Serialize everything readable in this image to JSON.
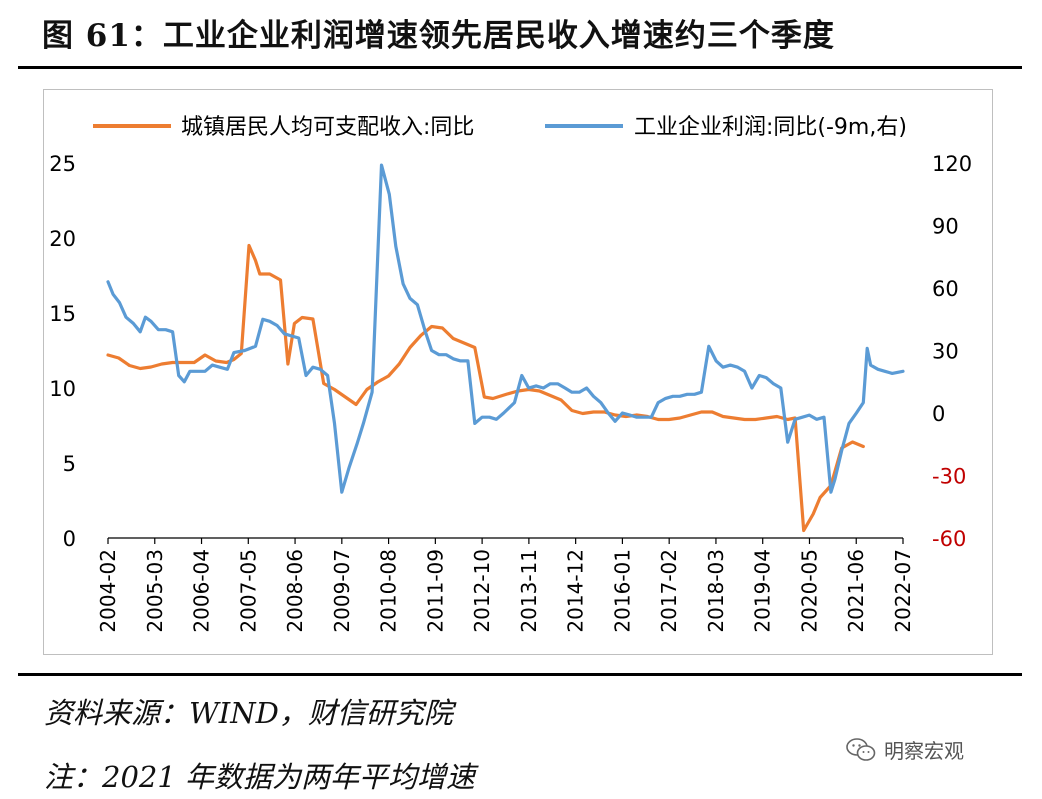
{
  "figure": {
    "title": "图 61：工业企业利润增速领先居民收入增速约三个季度",
    "source": "资料来源：WIND，财信研究院",
    "note": "注：2021 年数据为两年平均增速",
    "watermark": "明察宏观",
    "watermark_icon": "wechat-icon"
  },
  "chart_data": {
    "type": "line",
    "title": "",
    "xlabel": "",
    "ylabel_left": "",
    "ylabel_right": "",
    "legend_placement": "top",
    "grid": false,
    "x_ticks": [
      "2004-02",
      "2005-03",
      "2006-04",
      "2007-05",
      "2008-06",
      "2009-07",
      "2010-08",
      "2011-09",
      "2012-10",
      "2013-11",
      "2014-12",
      "2016-01",
      "2017-02",
      "2018-03",
      "2019-04",
      "2020-05",
      "2021-06",
      "2022-07"
    ],
    "x_range": [
      2004.083,
      2022.5
    ],
    "y_left": {
      "range": [
        0,
        25
      ],
      "ticks": [
        0,
        5,
        10,
        15,
        20,
        25
      ],
      "tick_color": "#000000"
    },
    "y_right": {
      "range": [
        -60,
        120
      ],
      "ticks": [
        -60,
        -30,
        0,
        30,
        60,
        90,
        120
      ],
      "tick_color_positive": "#000000",
      "tick_color_negative": "#c00000"
    },
    "series": [
      {
        "name": "城镇居民人均可支配收入:同比",
        "axis": "left",
        "color": "#ed7d31",
        "points": [
          [
            2004.083,
            12.2
          ],
          [
            2004.33,
            12.0
          ],
          [
            2004.58,
            11.5
          ],
          [
            2004.83,
            11.3
          ],
          [
            2005.08,
            11.4
          ],
          [
            2005.33,
            11.6
          ],
          [
            2005.58,
            11.7
          ],
          [
            2005.83,
            11.7
          ],
          [
            2006.08,
            11.7
          ],
          [
            2006.33,
            12.2
          ],
          [
            2006.58,
            11.8
          ],
          [
            2006.83,
            11.7
          ],
          [
            2007.0,
            11.9
          ],
          [
            2007.17,
            12.3
          ],
          [
            2007.35,
            19.5
          ],
          [
            2007.5,
            18.5
          ],
          [
            2007.6,
            17.6
          ],
          [
            2007.83,
            17.6
          ],
          [
            2008.08,
            17.2
          ],
          [
            2008.25,
            11.6
          ],
          [
            2008.4,
            14.3
          ],
          [
            2008.58,
            14.7
          ],
          [
            2008.83,
            14.6
          ],
          [
            2009.08,
            10.3
          ],
          [
            2009.33,
            9.9
          ],
          [
            2009.58,
            9.4
          ],
          [
            2009.83,
            8.9
          ],
          [
            2010.08,
            9.9
          ],
          [
            2010.33,
            10.4
          ],
          [
            2010.58,
            10.8
          ],
          [
            2010.83,
            11.6
          ],
          [
            2011.08,
            12.7
          ],
          [
            2011.33,
            13.5
          ],
          [
            2011.58,
            14.1
          ],
          [
            2011.83,
            14.0
          ],
          [
            2012.08,
            13.3
          ],
          [
            2012.33,
            13.0
          ],
          [
            2012.58,
            12.7
          ],
          [
            2012.8,
            9.4
          ],
          [
            2013.0,
            9.3
          ],
          [
            2013.33,
            9.6
          ],
          [
            2013.58,
            9.8
          ],
          [
            2013.83,
            9.9
          ],
          [
            2014.08,
            9.8
          ],
          [
            2014.33,
            9.5
          ],
          [
            2014.58,
            9.2
          ],
          [
            2014.83,
            8.5
          ],
          [
            2015.08,
            8.3
          ],
          [
            2015.33,
            8.4
          ],
          [
            2015.58,
            8.4
          ],
          [
            2015.83,
            8.2
          ],
          [
            2016.08,
            8.1
          ],
          [
            2016.33,
            8.2
          ],
          [
            2016.58,
            8.1
          ],
          [
            2016.83,
            7.9
          ],
          [
            2017.08,
            7.9
          ],
          [
            2017.33,
            8.0
          ],
          [
            2017.58,
            8.2
          ],
          [
            2017.83,
            8.4
          ],
          [
            2018.08,
            8.4
          ],
          [
            2018.33,
            8.1
          ],
          [
            2018.58,
            8.0
          ],
          [
            2018.83,
            7.9
          ],
          [
            2019.08,
            7.9
          ],
          [
            2019.33,
            8.0
          ],
          [
            2019.58,
            8.1
          ],
          [
            2019.83,
            7.9
          ],
          [
            2020.0,
            8.0
          ],
          [
            2020.2,
            0.5
          ],
          [
            2020.42,
            1.6
          ],
          [
            2020.58,
            2.7
          ],
          [
            2020.83,
            3.5
          ],
          [
            2021.08,
            6.0
          ],
          [
            2021.33,
            6.4
          ],
          [
            2021.58,
            6.1
          ]
        ]
      },
      {
        "name": "工业企业利润:同比(-9m,右)",
        "axis": "right",
        "color": "#5b9bd5",
        "points": [
          [
            2004.083,
            63
          ],
          [
            2004.2,
            57
          ],
          [
            2004.35,
            53
          ],
          [
            2004.5,
            46
          ],
          [
            2004.67,
            43
          ],
          [
            2004.83,
            39
          ],
          [
            2004.95,
            46
          ],
          [
            2005.08,
            44
          ],
          [
            2005.25,
            40
          ],
          [
            2005.42,
            40
          ],
          [
            2005.58,
            39
          ],
          [
            2005.72,
            18
          ],
          [
            2005.85,
            15
          ],
          [
            2005.98,
            20
          ],
          [
            2006.15,
            20
          ],
          [
            2006.33,
            20
          ],
          [
            2006.5,
            23
          ],
          [
            2006.67,
            22
          ],
          [
            2006.85,
            21
          ],
          [
            2007.0,
            29
          ],
          [
            2007.25,
            30
          ],
          [
            2007.5,
            32
          ],
          [
            2007.67,
            45
          ],
          [
            2007.83,
            44
          ],
          [
            2008.0,
            42
          ],
          [
            2008.17,
            38
          ],
          [
            2008.33,
            37
          ],
          [
            2008.5,
            36
          ],
          [
            2008.67,
            18
          ],
          [
            2008.83,
            22
          ],
          [
            2009.0,
            21
          ],
          [
            2009.17,
            18
          ],
          [
            2009.33,
            -5
          ],
          [
            2009.5,
            -38
          ],
          [
            2009.67,
            -26
          ],
          [
            2009.85,
            -15
          ],
          [
            2010.0,
            -5
          ],
          [
            2010.2,
            10
          ],
          [
            2010.42,
            119
          ],
          [
            2010.6,
            105
          ],
          [
            2010.75,
            80
          ],
          [
            2010.92,
            62
          ],
          [
            2011.08,
            55
          ],
          [
            2011.25,
            52
          ],
          [
            2011.42,
            40
          ],
          [
            2011.58,
            30
          ],
          [
            2011.75,
            28
          ],
          [
            2011.92,
            28
          ],
          [
            2012.08,
            26
          ],
          [
            2012.25,
            25
          ],
          [
            2012.42,
            25
          ],
          [
            2012.58,
            -5
          ],
          [
            2012.75,
            -2
          ],
          [
            2012.92,
            -2
          ],
          [
            2013.08,
            -3
          ],
          [
            2013.25,
            0
          ],
          [
            2013.5,
            5
          ],
          [
            2013.67,
            18
          ],
          [
            2013.83,
            12
          ],
          [
            2014.0,
            13
          ],
          [
            2014.17,
            12
          ],
          [
            2014.33,
            14
          ],
          [
            2014.5,
            14
          ],
          [
            2014.67,
            12
          ],
          [
            2014.83,
            10
          ],
          [
            2015.0,
            10
          ],
          [
            2015.17,
            12
          ],
          [
            2015.33,
            8
          ],
          [
            2015.5,
            5
          ],
          [
            2015.67,
            0
          ],
          [
            2015.83,
            -4
          ],
          [
            2016.0,
            0
          ],
          [
            2016.17,
            -1
          ],
          [
            2016.33,
            -2
          ],
          [
            2016.5,
            -2
          ],
          [
            2016.67,
            -2
          ],
          [
            2016.83,
            5
          ],
          [
            2017.0,
            7
          ],
          [
            2017.17,
            8
          ],
          [
            2017.33,
            8
          ],
          [
            2017.5,
            9
          ],
          [
            2017.67,
            9
          ],
          [
            2017.83,
            10
          ],
          [
            2018.0,
            32
          ],
          [
            2018.17,
            25
          ],
          [
            2018.33,
            22
          ],
          [
            2018.5,
            23
          ],
          [
            2018.67,
            22
          ],
          [
            2018.83,
            20
          ],
          [
            2019.0,
            12
          ],
          [
            2019.17,
            18
          ],
          [
            2019.33,
            17
          ],
          [
            2019.5,
            14
          ],
          [
            2019.67,
            12
          ],
          [
            2019.83,
            -14
          ],
          [
            2020.0,
            -3
          ],
          [
            2020.17,
            -2
          ],
          [
            2020.33,
            -1
          ],
          [
            2020.5,
            -3
          ],
          [
            2020.67,
            -2
          ],
          [
            2020.83,
            -38
          ],
          [
            2020.92,
            -32
          ],
          [
            2021.08,
            -18
          ],
          [
            2021.25,
            -5
          ],
          [
            2021.42,
            0
          ],
          [
            2021.58,
            5
          ],
          [
            2021.67,
            31
          ],
          [
            2021.75,
            23
          ],
          [
            2021.92,
            21
          ],
          [
            2022.08,
            20
          ],
          [
            2022.25,
            19
          ],
          [
            2022.5,
            20
          ]
        ]
      }
    ]
  }
}
